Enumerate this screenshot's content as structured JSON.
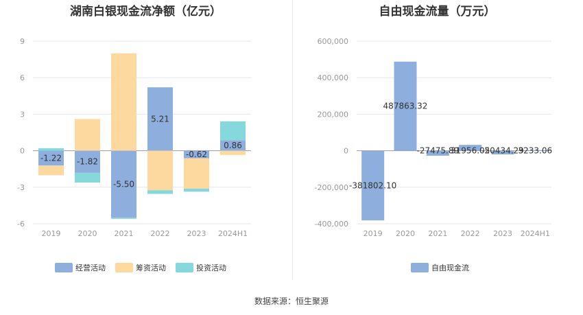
{
  "source": "数据来源：恒生聚源",
  "colors": {
    "operating": "#8eaedd",
    "financing": "#fdd9a0",
    "investing": "#85d8db",
    "fcf": "#8eaedd",
    "grid": "#e6e6ef",
    "zero": "#999999"
  },
  "chart_data": [
    {
      "type": "bar",
      "stacked": true,
      "title": "湖南白银现金流净额（亿元）",
      "categories": [
        "2019",
        "2020",
        "2021",
        "2022",
        "2023",
        "2024H1"
      ],
      "ylim": [
        -6,
        9
      ],
      "yticks": [
        "9",
        "6",
        "3",
        "0",
        "-3",
        "-6"
      ],
      "ytick_values": [
        9,
        6,
        3,
        0,
        -3,
        -6
      ],
      "legend_position": "bottom",
      "series": [
        {
          "name": "经营活动",
          "values": [
            -1.22,
            -1.82,
            -5.5,
            5.21,
            -0.62,
            0.86
          ],
          "labels": [
            "-1.22",
            "-1.82",
            "-5.50",
            "5.21",
            "-0.62",
            "0.86"
          ]
        },
        {
          "name": "筹资活动",
          "values": [
            -0.8,
            2.6,
            8.0,
            -3.25,
            -2.5,
            -0.35
          ]
        },
        {
          "name": "投资活动",
          "values": [
            0.2,
            -0.8,
            -0.1,
            -0.3,
            -0.25,
            1.55
          ]
        }
      ]
    },
    {
      "type": "bar",
      "title": "自由现金流量（万元）",
      "categories": [
        "2019",
        "2020",
        "2021",
        "2022",
        "2023",
        "2024H1"
      ],
      "ylim": [
        -400000,
        600000
      ],
      "yticks": [
        "600,000",
        "400,000",
        "200,000",
        "0",
        "-200,000",
        "-400,000"
      ],
      "ytick_values": [
        600000,
        400000,
        200000,
        0,
        -200000,
        -400000
      ],
      "legend_position": "bottom",
      "series": [
        {
          "name": "自由现金流",
          "values": [
            -381802.1,
            487863.32,
            -27475.89,
            31956.05,
            -20434.29,
            3233.06
          ],
          "labels": [
            "-381802.10",
            "487863.32",
            "-27475.89",
            "31956.05",
            "-20434.29",
            "3233.06"
          ]
        }
      ]
    }
  ]
}
